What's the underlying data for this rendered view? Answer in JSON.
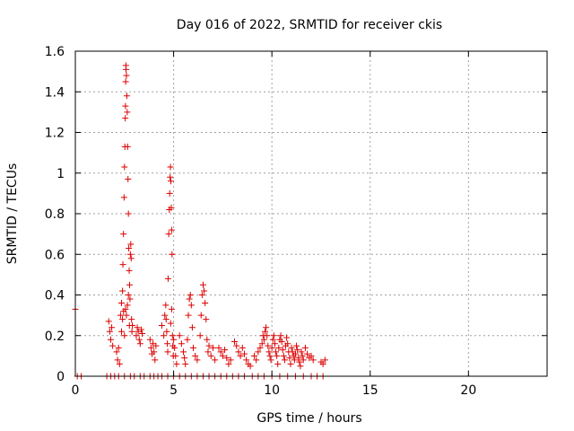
{
  "chart_data": {
    "type": "scatter",
    "title": "Day 016 of 2022, SRMTID for receiver ckis",
    "xlabel": "GPS time / hours",
    "ylabel": "SRMTID / TECUs",
    "xlim": [
      0,
      24
    ],
    "ylim": [
      0,
      1.6
    ],
    "xticks": [
      0,
      5,
      10,
      15,
      20
    ],
    "xtick_labels": [
      "0",
      "5",
      "10",
      "15",
      "20"
    ],
    "yticks": [
      0,
      0.2,
      0.4,
      0.6,
      0.8,
      1,
      1.2,
      1.4,
      1.6
    ],
    "ytick_labels": [
      "0",
      "0.2",
      "0.4",
      "0.6",
      "0.8",
      "1",
      "1.2",
      "1.4",
      "1.6"
    ],
    "grid": true,
    "marker": "+",
    "color": "#dd0000",
    "series": [
      {
        "name": "SRMTID",
        "points": [
          [
            0.0,
            0.33
          ],
          [
            0.1,
            0.0
          ],
          [
            0.3,
            0.0
          ],
          [
            1.6,
            0.0
          ],
          [
            1.8,
            0.0
          ],
          [
            2.0,
            0.0
          ],
          [
            2.2,
            0.0
          ],
          [
            2.5,
            0.0
          ],
          [
            2.8,
            0.0
          ],
          [
            3.0,
            0.0
          ],
          [
            3.3,
            0.0
          ],
          [
            3.5,
            0.0
          ],
          [
            3.8,
            0.0
          ],
          [
            4.0,
            0.0
          ],
          [
            4.2,
            0.0
          ],
          [
            4.4,
            0.0
          ],
          [
            4.7,
            0.0
          ],
          [
            5.0,
            0.0
          ],
          [
            5.3,
            0.0
          ],
          [
            5.6,
            0.0
          ],
          [
            5.9,
            0.0
          ],
          [
            6.2,
            0.0
          ],
          [
            6.5,
            0.0
          ],
          [
            6.8,
            0.0
          ],
          [
            7.1,
            0.0
          ],
          [
            7.4,
            0.0
          ],
          [
            7.7,
            0.0
          ],
          [
            8.0,
            0.0
          ],
          [
            8.3,
            0.0
          ],
          [
            8.6,
            0.0
          ],
          [
            9.0,
            0.0
          ],
          [
            9.3,
            0.0
          ],
          [
            9.6,
            0.0
          ],
          [
            10.0,
            0.0
          ],
          [
            10.4,
            0.0
          ],
          [
            10.8,
            0.0
          ],
          [
            11.2,
            0.0
          ],
          [
            11.6,
            0.0
          ],
          [
            12.0,
            0.0
          ],
          [
            12.3,
            0.0
          ],
          [
            12.6,
            0.0
          ],
          [
            1.7,
            0.27
          ],
          [
            1.75,
            0.22
          ],
          [
            1.8,
            0.18
          ],
          [
            1.85,
            0.24
          ],
          [
            1.9,
            0.15
          ],
          [
            2.1,
            0.12
          ],
          [
            2.15,
            0.08
          ],
          [
            2.2,
            0.14
          ],
          [
            2.25,
            0.06
          ],
          [
            2.3,
            0.3
          ],
          [
            2.35,
            0.36
          ],
          [
            2.4,
            0.42
          ],
          [
            2.42,
            0.55
          ],
          [
            2.45,
            0.7
          ],
          [
            2.48,
            0.88
          ],
          [
            2.5,
            1.03
          ],
          [
            2.52,
            1.13
          ],
          [
            2.54,
            1.27
          ],
          [
            2.55,
            1.33
          ],
          [
            2.56,
            1.45
          ],
          [
            2.57,
            1.53
          ],
          [
            2.58,
            1.51
          ],
          [
            2.6,
            1.48
          ],
          [
            2.62,
            1.38
          ],
          [
            2.64,
            1.3
          ],
          [
            2.66,
            1.13
          ],
          [
            2.68,
            0.97
          ],
          [
            2.7,
            0.8
          ],
          [
            2.72,
            0.63
          ],
          [
            2.74,
            0.52
          ],
          [
            2.76,
            0.45
          ],
          [
            2.78,
            0.38
          ],
          [
            2.8,
            0.6
          ],
          [
            2.82,
            0.65
          ],
          [
            2.84,
            0.58
          ],
          [
            2.86,
            0.28
          ],
          [
            2.88,
            0.22
          ],
          [
            2.9,
            0.25
          ],
          [
            2.55,
            0.33
          ],
          [
            2.6,
            0.3
          ],
          [
            2.65,
            0.35
          ],
          [
            2.7,
            0.4
          ],
          [
            2.75,
            0.25
          ],
          [
            2.5,
            0.2
          ],
          [
            2.45,
            0.32
          ],
          [
            2.4,
            0.28
          ],
          [
            2.35,
            0.22
          ],
          [
            3.1,
            0.2
          ],
          [
            3.15,
            0.24
          ],
          [
            3.2,
            0.22
          ],
          [
            3.25,
            0.18
          ],
          [
            3.3,
            0.16
          ],
          [
            3.35,
            0.23
          ],
          [
            3.4,
            0.21
          ],
          [
            3.8,
            0.18
          ],
          [
            3.85,
            0.14
          ],
          [
            3.9,
            0.11
          ],
          [
            3.95,
            0.16
          ],
          [
            4.0,
            0.12
          ],
          [
            4.05,
            0.08
          ],
          [
            4.1,
            0.15
          ],
          [
            4.4,
            0.25
          ],
          [
            4.5,
            0.2
          ],
          [
            4.55,
            0.3
          ],
          [
            4.6,
            0.35
          ],
          [
            4.62,
            0.28
          ],
          [
            4.65,
            0.22
          ],
          [
            4.68,
            0.16
          ],
          [
            4.7,
            0.12
          ],
          [
            4.72,
            0.48
          ],
          [
            4.75,
            0.7
          ],
          [
            4.78,
            0.82
          ],
          [
            4.8,
            0.9
          ],
          [
            4.82,
            0.98
          ],
          [
            4.84,
            1.03
          ],
          [
            4.86,
            0.96
          ],
          [
            4.88,
            0.83
          ],
          [
            4.9,
            0.72
          ],
          [
            4.92,
            0.6
          ],
          [
            4.94,
            0.2
          ],
          [
            4.96,
            0.15
          ],
          [
            4.98,
            0.1
          ],
          [
            5.0,
            0.18
          ],
          [
            5.05,
            0.14
          ],
          [
            5.1,
            0.1
          ],
          [
            5.15,
            0.06
          ],
          [
            4.85,
            0.26
          ],
          [
            4.9,
            0.33
          ],
          [
            5.3,
            0.2
          ],
          [
            5.4,
            0.16
          ],
          [
            5.5,
            0.12
          ],
          [
            5.55,
            0.09
          ],
          [
            5.6,
            0.06
          ],
          [
            5.7,
            0.18
          ],
          [
            5.75,
            0.3
          ],
          [
            5.8,
            0.38
          ],
          [
            5.85,
            0.4
          ],
          [
            5.9,
            0.35
          ],
          [
            5.95,
            0.24
          ],
          [
            6.0,
            0.14
          ],
          [
            6.1,
            0.1
          ],
          [
            6.2,
            0.08
          ],
          [
            6.35,
            0.2
          ],
          [
            6.4,
            0.3
          ],
          [
            6.45,
            0.4
          ],
          [
            6.5,
            0.45
          ],
          [
            6.55,
            0.42
          ],
          [
            6.6,
            0.36
          ],
          [
            6.65,
            0.28
          ],
          [
            6.7,
            0.18
          ],
          [
            6.75,
            0.12
          ],
          [
            6.8,
            0.15
          ],
          [
            6.9,
            0.1
          ],
          [
            7.0,
            0.14
          ],
          [
            7.1,
            0.08
          ],
          [
            7.3,
            0.14
          ],
          [
            7.4,
            0.12
          ],
          [
            7.5,
            0.1
          ],
          [
            7.6,
            0.13
          ],
          [
            7.7,
            0.09
          ],
          [
            7.8,
            0.06
          ],
          [
            7.9,
            0.08
          ],
          [
            8.1,
            0.17
          ],
          [
            8.2,
            0.15
          ],
          [
            8.3,
            0.12
          ],
          [
            8.4,
            0.1
          ],
          [
            8.5,
            0.14
          ],
          [
            8.6,
            0.11
          ],
          [
            8.7,
            0.08
          ],
          [
            8.8,
            0.06
          ],
          [
            8.9,
            0.05
          ],
          [
            9.1,
            0.1
          ],
          [
            9.2,
            0.08
          ],
          [
            9.3,
            0.12
          ],
          [
            9.4,
            0.14
          ],
          [
            9.5,
            0.16
          ],
          [
            9.55,
            0.2
          ],
          [
            9.6,
            0.18
          ],
          [
            9.65,
            0.22
          ],
          [
            9.7,
            0.24
          ],
          [
            9.75,
            0.2
          ],
          [
            9.8,
            0.15
          ],
          [
            9.85,
            0.12
          ],
          [
            9.9,
            0.1
          ],
          [
            9.95,
            0.08
          ],
          [
            10.0,
            0.14
          ],
          [
            10.05,
            0.18
          ],
          [
            10.1,
            0.2
          ],
          [
            10.15,
            0.16
          ],
          [
            10.2,
            0.12
          ],
          [
            10.25,
            0.1
          ],
          [
            10.3,
            0.06
          ],
          [
            10.35,
            0.14
          ],
          [
            10.4,
            0.18
          ],
          [
            10.45,
            0.2
          ],
          [
            10.5,
            0.17
          ],
          [
            10.55,
            0.13
          ],
          [
            10.6,
            0.1
          ],
          [
            10.65,
            0.08
          ],
          [
            10.7,
            0.15
          ],
          [
            10.75,
            0.19
          ],
          [
            10.8,
            0.16
          ],
          [
            10.85,
            0.12
          ],
          [
            10.9,
            0.09
          ],
          [
            10.95,
            0.06
          ],
          [
            11.0,
            0.14
          ],
          [
            11.05,
            0.12
          ],
          [
            11.1,
            0.1
          ],
          [
            11.15,
            0.08
          ],
          [
            11.2,
            0.11
          ],
          [
            11.25,
            0.15
          ],
          [
            11.3,
            0.13
          ],
          [
            11.35,
            0.09
          ],
          [
            11.4,
            0.07
          ],
          [
            11.45,
            0.05
          ],
          [
            11.5,
            0.12
          ],
          [
            11.55,
            0.1
          ],
          [
            11.6,
            0.08
          ],
          [
            11.7,
            0.14
          ],
          [
            11.8,
            0.11
          ],
          [
            11.9,
            0.09
          ],
          [
            12.0,
            0.1
          ],
          [
            12.1,
            0.08
          ],
          [
            12.5,
            0.07
          ],
          [
            12.6,
            0.06
          ],
          [
            12.7,
            0.08
          ]
        ]
      }
    ]
  }
}
